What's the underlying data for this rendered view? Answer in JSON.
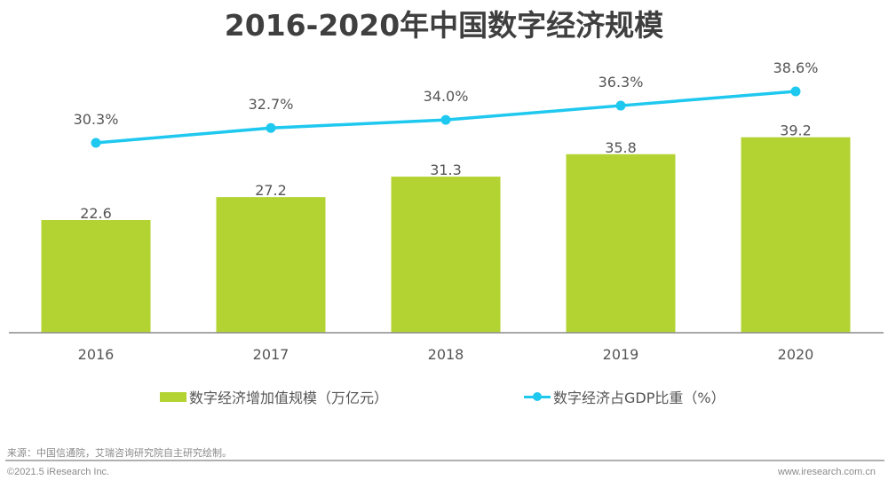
{
  "chart_data": {
    "type": "bar+line",
    "title": "2016-2020年中国数字经济规模",
    "categories": [
      "2016",
      "2017",
      "2018",
      "2019",
      "2020"
    ],
    "series": [
      {
        "name": "数字经济增加值规模（万亿元）",
        "type": "bar",
        "values": [
          22.6,
          27.2,
          31.3,
          35.8,
          39.2
        ],
        "labels": [
          "22.6",
          "27.2",
          "31.3",
          "35.8",
          "39.2"
        ],
        "color": "#b3d332"
      },
      {
        "name": "数字经济占GDP比重（%）",
        "type": "line",
        "values": [
          30.3,
          32.7,
          34.0,
          36.3,
          38.6
        ],
        "labels": [
          "30.3%",
          "32.7%",
          "34.0%",
          "36.3%",
          "38.6%"
        ],
        "color": "#1ec8ef"
      }
    ],
    "xlabel": "",
    "ylabel": "",
    "grid": false,
    "legend": "bottom"
  },
  "footer": {
    "source": "来源：中国信通院，艾瑞咨询研究院自主研究绘制。",
    "copyright": "©2021.5 iResearch Inc.",
    "website": "www.iresearch.com.cn"
  }
}
